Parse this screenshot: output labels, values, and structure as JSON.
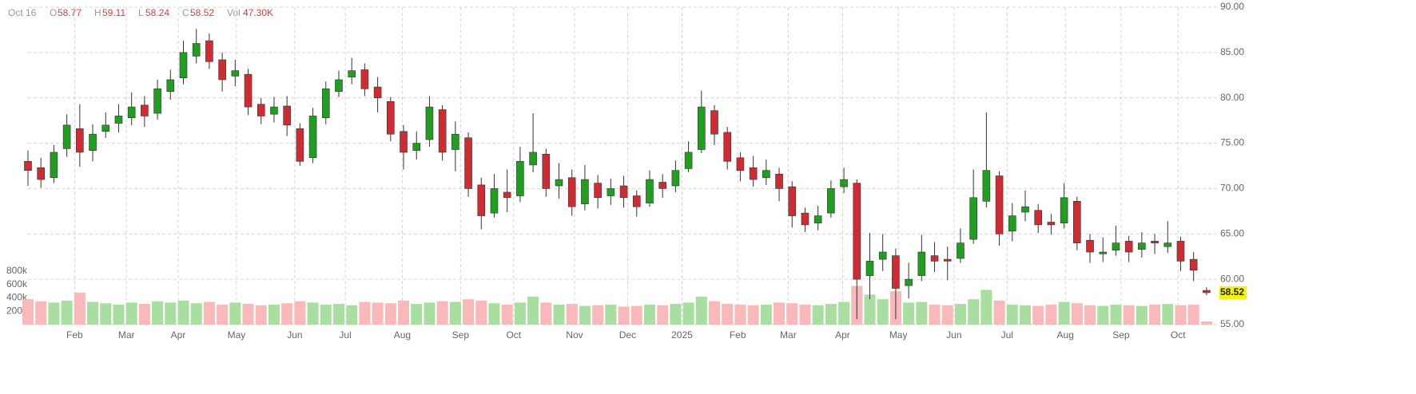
{
  "chart_data": {
    "type": "candlestick",
    "header": {
      "date": "Oct 16",
      "open": "O",
      "high": "H",
      "low": "L",
      "close": "C",
      "volume": "Vol",
      "volume_value": "47.30K"
    },
    "open": [
      73,
      72.3,
      71.2,
      74.4,
      76.6,
      74.2,
      76.3,
      77.2,
      77.8,
      79.2,
      78.3,
      80.7,
      82.2,
      84.6,
      86.3,
      84.2,
      82.4,
      82.6,
      79.3,
      78.2,
      79.1,
      76.6,
      73.4,
      77.8,
      80.7,
      82.3,
      83.1,
      81.2,
      79.6,
      76.3,
      74.2,
      75.4,
      78.7,
      74.3,
      75.6,
      70.4,
      67.3,
      69.6,
      69.2,
      72.6,
      73.8,
      70.3,
      71.2,
      68.3,
      70.6,
      69.2,
      70.3,
      69.2,
      68.4,
      70.7,
      70.3,
      72.2,
      74.3,
      78.6,
      76.2,
      73.4,
      72.3,
      71.2,
      71.6,
      70.2,
      67.3,
      66.2,
      67.3,
      70.2,
      70.6,
      60.4,
      62.2,
      62.6,
      59.3,
      60.4,
      62.6,
      62.2,
      62.3,
      64.4,
      68.6,
      71.4,
      65.3,
      67.4,
      67.6,
      66.3,
      66.2,
      68.6,
      64.3,
      62.8,
      63.2,
      64.2,
      63.3,
      64.2,
      63.6,
      64.2,
      62.2,
      58.77
    ],
    "high": [
      74.2,
      73.4,
      74.8,
      78.2,
      79.3,
      77.1,
      78.4,
      79.3,
      80.6,
      80.2,
      82.0,
      83.1,
      86.3,
      87.6,
      87.1,
      85.0,
      84.2,
      83.2,
      80.0,
      80.1,
      80.2,
      77.2,
      78.9,
      81.8,
      83.0,
      84.4,
      83.8,
      82.3,
      80.1,
      77.0,
      76.3,
      80.2,
      79.2,
      77.4,
      76.2,
      71.2,
      71.6,
      72.1,
      74.6,
      78.3,
      74.4,
      72.8,
      72.1,
      72.6,
      71.5,
      71.1,
      71.4,
      69.8,
      72.0,
      71.6,
      73.1,
      75.2,
      80.8,
      79.2,
      76.8,
      74.0,
      73.6,
      73.2,
      72.3,
      70.8,
      67.9,
      68.1,
      70.9,
      72.3,
      71.0,
      65.1,
      65.0,
      63.4,
      61.8,
      64.9,
      64.1,
      63.6,
      65.6,
      72.1,
      78.4,
      71.9,
      68.4,
      69.8,
      68.3,
      67.2,
      70.6,
      69.1,
      65.0,
      64.6,
      65.9,
      64.8,
      65.2,
      65.0,
      66.4,
      64.7,
      63.0,
      59.11
    ],
    "low": [
      70.3,
      70.1,
      70.6,
      73.5,
      72.4,
      73.0,
      75.6,
      76.2,
      77.0,
      76.8,
      77.6,
      79.8,
      81.5,
      83.8,
      83.2,
      80.7,
      81.3,
      78.1,
      77.1,
      77.3,
      75.8,
      72.5,
      72.8,
      77.1,
      80.1,
      81.5,
      80.2,
      78.4,
      75.2,
      72.1,
      73.2,
      74.6,
      73.1,
      71.9,
      69.1,
      65.5,
      66.8,
      67.4,
      68.5,
      71.8,
      69.1,
      68.9,
      67.0,
      67.6,
      67.8,
      68.2,
      67.9,
      66.9,
      68.0,
      69.0,
      69.6,
      71.8,
      73.9,
      74.8,
      72.1,
      70.8,
      70.2,
      70.4,
      68.6,
      65.7,
      65.2,
      65.4,
      66.8,
      69.5,
      55.6,
      57.8,
      60.9,
      55.6,
      57.9,
      59.8,
      60.8,
      59.9,
      61.8,
      63.9,
      67.9,
      63.7,
      64.2,
      66.4,
      65.1,
      64.9,
      65.6,
      63.2,
      61.8,
      61.9,
      62.6,
      61.9,
      62.4,
      62.8,
      62.9,
      60.9,
      59.8,
      58.24
    ],
    "close": [
      72,
      71,
      74,
      77,
      74,
      76,
      77,
      78,
      79,
      78,
      81,
      82,
      85,
      86,
      84,
      82,
      83,
      79,
      78,
      79,
      77,
      73,
      78,
      81,
      82,
      83,
      81,
      80,
      76,
      74,
      75,
      79,
      74,
      76,
      70,
      67,
      70,
      69,
      73,
      74,
      70,
      71,
      68,
      71,
      69,
      70,
      69,
      68,
      71,
      70,
      72,
      74,
      79,
      76,
      73,
      72,
      71,
      72,
      70,
      67,
      66,
      67,
      70,
      71,
      60,
      62,
      63,
      59,
      60,
      63,
      62,
      62,
      64,
      69,
      72,
      65,
      67,
      68,
      66,
      66,
      69,
      64,
      63,
      63,
      64,
      63,
      64,
      64,
      64,
      62,
      61,
      58.52
    ],
    "volume": [
      380000,
      350000,
      330000,
      360000,
      480000,
      340000,
      320000,
      300000,
      330000,
      310000,
      350000,
      330000,
      360000,
      320000,
      340000,
      300000,
      330000,
      310000,
      290000,
      300000,
      320000,
      350000,
      330000,
      300000,
      310000,
      290000,
      340000,
      330000,
      320000,
      360000,
      310000,
      330000,
      350000,
      340000,
      380000,
      360000,
      320000,
      300000,
      330000,
      420000,
      330000,
      300000,
      310000,
      280000,
      290000,
      300000,
      270000,
      280000,
      300000,
      290000,
      310000,
      330000,
      420000,
      350000,
      310000,
      300000,
      290000,
      300000,
      330000,
      320000,
      300000,
      290000,
      310000,
      340000,
      580000,
      450000,
      380000,
      500000,
      330000,
      340000,
      300000,
      290000,
      310000,
      380000,
      520000,
      360000,
      300000,
      290000,
      280000,
      300000,
      340000,
      320000,
      290000,
      280000,
      300000,
      290000,
      280000,
      300000,
      310000,
      290000,
      300000,
      47300
    ],
    "up_color": "#1f9e1f",
    "down_color": "#cf2b33",
    "volume_up_color": "#a8dfa0",
    "volume_down_color": "#f9b8ba",
    "xlim": [
      -0.6,
      91.5
    ],
    "xticks": [
      {
        "value": 3.6,
        "label": "Feb"
      },
      {
        "value": 7.6,
        "label": "Mar"
      },
      {
        "value": 11.6,
        "label": "Apr"
      },
      {
        "value": 16.1,
        "label": "May"
      },
      {
        "value": 20.6,
        "label": "Jun"
      },
      {
        "value": 24.5,
        "label": "Jul"
      },
      {
        "value": 28.9,
        "label": "Aug"
      },
      {
        "value": 33.4,
        "label": "Sep"
      },
      {
        "value": 37.5,
        "label": "Oct"
      },
      {
        "value": 42.2,
        "label": "Nov"
      },
      {
        "value": 46.3,
        "label": "Dec"
      },
      {
        "value": 50.5,
        "label": "2025"
      },
      {
        "value": 54.8,
        "label": "Feb"
      },
      {
        "value": 58.7,
        "label": "Mar"
      },
      {
        "value": 62.9,
        "label": "Apr"
      },
      {
        "value": 67.2,
        "label": "May"
      },
      {
        "value": 71.5,
        "label": "Jun"
      },
      {
        "value": 75.6,
        "label": "Jul"
      },
      {
        "value": 80.1,
        "label": "Aug"
      },
      {
        "value": 84.4,
        "label": "Sep"
      },
      {
        "value": 88.8,
        "label": "Oct"
      }
    ],
    "ylim": [
      55,
      90
    ],
    "yticks": [
      {
        "value": 55,
        "label": "55.00"
      },
      {
        "value": 60,
        "label": "60.00"
      },
      {
        "value": 65,
        "label": "65.00"
      },
      {
        "value": 70,
        "label": "70.00"
      },
      {
        "value": 75,
        "label": "75.00"
      },
      {
        "value": 80,
        "label": "80.00"
      },
      {
        "value": 85,
        "label": "85.00"
      },
      {
        "value": 90,
        "label": "90.00"
      }
    ],
    "vlim": [
      0,
      800000
    ],
    "vticks": [
      {
        "value": 200000,
        "label": "200k"
      },
      {
        "value": 400000,
        "label": "400k"
      },
      {
        "value": 600000,
        "label": "600k"
      },
      {
        "value": 800000,
        "label": "800k"
      }
    ],
    "grid": true
  }
}
